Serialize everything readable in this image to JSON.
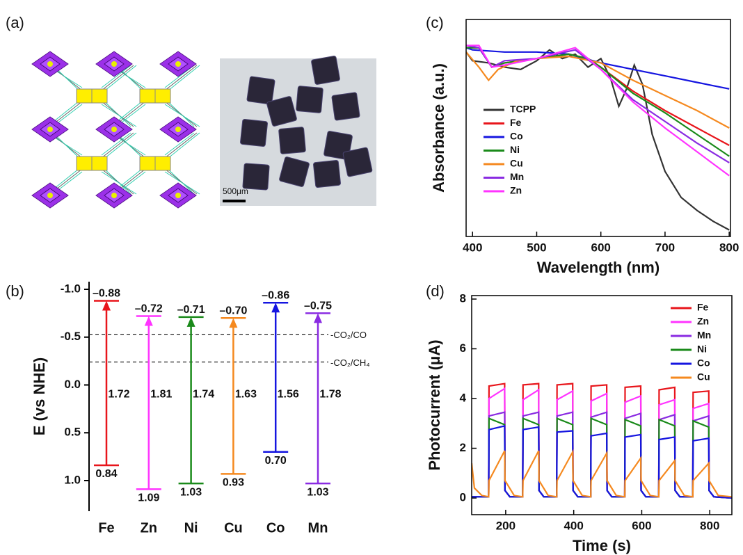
{
  "panel_a": {
    "label": "(a)",
    "scale_bar": "500μm"
  },
  "chart_data": [
    {
      "type": "band",
      "panel_label": "(b)",
      "y_label": "E (vs NHE)",
      "invert_y": true,
      "categories": [
        "Fe",
        "Zn",
        "Ni",
        "Cu",
        "Co",
        "Mn"
      ],
      "colors": [
        "#e8151b",
        "#ff33ff",
        "#1a8a1a",
        "#f5891f",
        "#1515e0",
        "#8a2be2"
      ],
      "cb": {
        "values": [
          -0.88,
          -0.72,
          -0.71,
          -0.7,
          -0.86,
          -0.75
        ],
        "value_labels": [
          "–0.88",
          "–0.72",
          "–0.71",
          "–0.70",
          "–0.86",
          "–0.75"
        ]
      },
      "vb": {
        "values": [
          0.84,
          1.09,
          1.03,
          0.93,
          0.7,
          1.03
        ],
        "value_labels": [
          "0.84",
          "1.09",
          "1.03",
          "0.93",
          "0.70",
          "1.03"
        ]
      },
      "band_gap": {
        "values": [
          1.72,
          1.81,
          1.74,
          1.63,
          1.56,
          1.78
        ]
      },
      "ylim": [
        -1.08,
        1.32
      ],
      "yticks": [
        {
          "value": -1,
          "label": "-1.0"
        },
        {
          "value": -0.5,
          "label": "-0.5"
        },
        {
          "value": 0,
          "label": "0.0"
        },
        {
          "value": 0.5,
          "label": "0.5"
        },
        {
          "value": 1,
          "label": "1.0"
        }
      ],
      "reference_lines": [
        {
          "value": -0.53,
          "label": "-CO₂/CO"
        },
        {
          "value": -0.24,
          "label": "-CO₂/CH₄"
        }
      ]
    },
    {
      "type": "line",
      "panel_label": "(c)",
      "x_label": "Wavelength (nm)",
      "y_label": "Absorbance (a.u.)",
      "xlim": [
        390,
        802
      ],
      "ylim": [
        0,
        1
      ],
      "xticks": [
        400,
        500,
        600,
        700,
        800
      ],
      "legend": "upper left",
      "series": [
        {
          "name": "TCPP",
          "color": "#333333",
          "x": [
            390,
            400,
            425,
            450,
            475,
            500,
            520,
            540,
            560,
            580,
            600,
            615,
            628,
            640,
            652,
            665,
            680,
            700,
            725,
            750,
            775,
            800
          ],
          "values": [
            0.85,
            0.81,
            0.8,
            0.78,
            0.77,
            0.81,
            0.86,
            0.82,
            0.84,
            0.78,
            0.82,
            0.73,
            0.6,
            0.68,
            0.79,
            0.7,
            0.47,
            0.3,
            0.18,
            0.12,
            0.07,
            0.03
          ]
        },
        {
          "name": "Fe",
          "color": "#e8151b",
          "x": [
            390,
            410,
            430,
            450,
            500,
            550,
            580,
            600,
            650,
            700,
            750,
            800
          ],
          "values": [
            0.87,
            0.87,
            0.78,
            0.8,
            0.82,
            0.84,
            0.82,
            0.78,
            0.67,
            0.58,
            0.5,
            0.42
          ]
        },
        {
          "name": "Co",
          "color": "#1515e0",
          "x": [
            390,
            400,
            450,
            500,
            550,
            600,
            650,
            700,
            750,
            800
          ],
          "values": [
            0.87,
            0.86,
            0.85,
            0.85,
            0.84,
            0.8,
            0.77,
            0.74,
            0.71,
            0.68
          ]
        },
        {
          "name": "Ni",
          "color": "#1a8a1a",
          "x": [
            390,
            410,
            430,
            450,
            500,
            550,
            580,
            600,
            650,
            700,
            750,
            800
          ],
          "values": [
            0.87,
            0.87,
            0.78,
            0.8,
            0.82,
            0.84,
            0.82,
            0.78,
            0.66,
            0.57,
            0.47,
            0.37
          ]
        },
        {
          "name": "Cu",
          "color": "#f5891f",
          "x": [
            390,
            410,
            425,
            440,
            470,
            500,
            550,
            600,
            650,
            700,
            750,
            800
          ],
          "values": [
            0.85,
            0.78,
            0.72,
            0.77,
            0.81,
            0.82,
            0.83,
            0.8,
            0.72,
            0.65,
            0.58,
            0.5
          ]
        },
        {
          "name": "Mn",
          "color": "#8a2be2",
          "x": [
            390,
            410,
            430,
            450,
            500,
            560,
            600,
            650,
            700,
            750,
            800
          ],
          "values": [
            0.88,
            0.87,
            0.78,
            0.81,
            0.82,
            0.86,
            0.77,
            0.63,
            0.53,
            0.43,
            0.34
          ]
        },
        {
          "name": "Zn",
          "color": "#ff33ff",
          "x": [
            390,
            410,
            430,
            450,
            500,
            560,
            600,
            650,
            700,
            750,
            800
          ],
          "values": [
            0.88,
            0.88,
            0.78,
            0.79,
            0.82,
            0.87,
            0.77,
            0.62,
            0.5,
            0.39,
            0.28
          ]
        }
      ]
    },
    {
      "type": "line",
      "panel_label": "(d)",
      "x_label": "Time (s)",
      "y_label": "Photocurrent (μA)",
      "xlim": [
        100,
        865
      ],
      "ylim": [
        -0.67,
        8.14
      ],
      "xticks": [
        200,
        400,
        600,
        800
      ],
      "yticks": [
        0,
        2,
        4,
        6,
        8
      ],
      "legend": "upper right",
      "series": [
        {
          "name": "Fe",
          "color": "#e8151b",
          "x": [
            100,
            150,
            151,
            197,
            198,
            212,
            250,
            251,
            297,
            298,
            312,
            350,
            351,
            397,
            398,
            412,
            450,
            451,
            497,
            498,
            512,
            550,
            551,
            597,
            598,
            612,
            650,
            651,
            697,
            698,
            712,
            750,
            751,
            797,
            798,
            812,
            865
          ],
          "values": [
            0.05,
            0.05,
            4.5,
            4.6,
            0.3,
            0.05,
            0.05,
            4.55,
            4.6,
            0.3,
            0.05,
            0.05,
            4.55,
            4.6,
            0.3,
            0.05,
            0.05,
            4.5,
            4.55,
            0.3,
            0.05,
            0.05,
            4.45,
            4.5,
            0.3,
            0.05,
            0.05,
            4.35,
            4.45,
            0.3,
            0.05,
            0.05,
            4.25,
            4.3,
            0.3,
            0.05,
            0.0
          ]
        },
        {
          "name": "Zn",
          "color": "#ff33ff",
          "x": [
            100,
            150,
            151,
            197,
            198,
            212,
            250,
            251,
            297,
            298,
            312,
            350,
            351,
            397,
            398,
            412,
            450,
            451,
            497,
            498,
            512,
            550,
            551,
            597,
            598,
            612,
            650,
            651,
            697,
            698,
            712,
            750,
            751,
            797,
            798,
            812,
            865
          ],
          "values": [
            0.05,
            0.05,
            4.0,
            4.4,
            0.3,
            0.05,
            0.05,
            3.95,
            4.35,
            0.3,
            0.05,
            0.05,
            3.95,
            4.3,
            0.3,
            0.05,
            0.05,
            3.9,
            4.2,
            0.3,
            0.05,
            0.05,
            3.85,
            4.1,
            0.3,
            0.05,
            0.05,
            3.75,
            3.95,
            0.3,
            0.05,
            0.05,
            3.6,
            3.8,
            0.3,
            0.05,
            0.0
          ]
        },
        {
          "name": "Mn",
          "color": "#8a2be2",
          "x": [
            100,
            150,
            151,
            197,
            198,
            212,
            250,
            251,
            297,
            298,
            312,
            350,
            351,
            397,
            398,
            412,
            450,
            451,
            497,
            498,
            512,
            550,
            551,
            597,
            598,
            612,
            650,
            651,
            697,
            698,
            712,
            750,
            751,
            797,
            798,
            812,
            865
          ],
          "values": [
            0.05,
            0.05,
            3.3,
            3.45,
            0.3,
            0.05,
            0.05,
            3.3,
            3.45,
            0.3,
            0.05,
            0.05,
            3.3,
            3.45,
            0.3,
            0.05,
            0.05,
            3.25,
            3.45,
            0.3,
            0.05,
            0.05,
            3.2,
            3.4,
            0.3,
            0.05,
            0.05,
            3.15,
            3.35,
            0.3,
            0.05,
            0.05,
            3.1,
            3.3,
            0.3,
            0.05,
            0.0
          ]
        },
        {
          "name": "Ni",
          "color": "#1a8a1a",
          "x": [
            100,
            150,
            151,
            197,
            198,
            212,
            250,
            251,
            297,
            298,
            312,
            350,
            351,
            397,
            398,
            412,
            450,
            451,
            497,
            498,
            512,
            550,
            551,
            597,
            598,
            612,
            650,
            651,
            697,
            698,
            712,
            750,
            751,
            797,
            798,
            812,
            865
          ],
          "values": [
            0.05,
            0.05,
            3.2,
            2.95,
            0.3,
            0.05,
            0.05,
            3.2,
            2.95,
            0.3,
            0.05,
            0.05,
            3.2,
            2.95,
            0.3,
            0.05,
            0.05,
            3.2,
            2.95,
            0.3,
            0.05,
            0.05,
            3.15,
            2.9,
            0.3,
            0.05,
            0.05,
            3.15,
            2.9,
            0.3,
            0.05,
            0.05,
            3.1,
            2.85,
            0.3,
            0.05,
            0.0
          ]
        },
        {
          "name": "Co",
          "color": "#1515e0",
          "x": [
            100,
            150,
            151,
            197,
            198,
            212,
            250,
            251,
            297,
            298,
            312,
            350,
            351,
            397,
            398,
            412,
            450,
            451,
            497,
            498,
            512,
            550,
            551,
            597,
            598,
            612,
            650,
            651,
            697,
            698,
            712,
            750,
            751,
            797,
            798,
            812,
            865
          ],
          "values": [
            0.05,
            0.05,
            2.75,
            2.9,
            0.3,
            0.05,
            0.05,
            2.75,
            2.85,
            0.3,
            0.05,
            0.05,
            2.65,
            2.7,
            0.3,
            0.05,
            0.05,
            2.5,
            2.6,
            0.3,
            0.05,
            0.05,
            2.45,
            2.55,
            0.3,
            0.05,
            0.05,
            2.35,
            2.45,
            0.3,
            0.05,
            0.05,
            2.3,
            2.4,
            0.3,
            0.05,
            0.0
          ]
        },
        {
          "name": "Cu",
          "color": "#f5891f",
          "x": [
            100,
            108,
            130,
            150,
            151,
            197,
            198,
            225,
            250,
            251,
            297,
            298,
            325,
            350,
            351,
            397,
            398,
            425,
            450,
            451,
            497,
            498,
            525,
            550,
            551,
            597,
            598,
            625,
            650,
            651,
            697,
            698,
            725,
            750,
            751,
            797,
            798,
            825,
            865
          ],
          "values": [
            1.4,
            0.4,
            0.1,
            0.05,
            0.7,
            1.9,
            0.7,
            0.1,
            0.05,
            0.7,
            1.9,
            0.7,
            0.1,
            0.05,
            0.7,
            1.85,
            0.7,
            0.1,
            0.05,
            0.7,
            1.8,
            0.7,
            0.1,
            0.05,
            0.7,
            1.6,
            0.7,
            0.1,
            0.05,
            0.7,
            1.5,
            0.7,
            0.1,
            0.05,
            0.7,
            1.4,
            0.7,
            0.1,
            0.05
          ]
        }
      ]
    }
  ]
}
